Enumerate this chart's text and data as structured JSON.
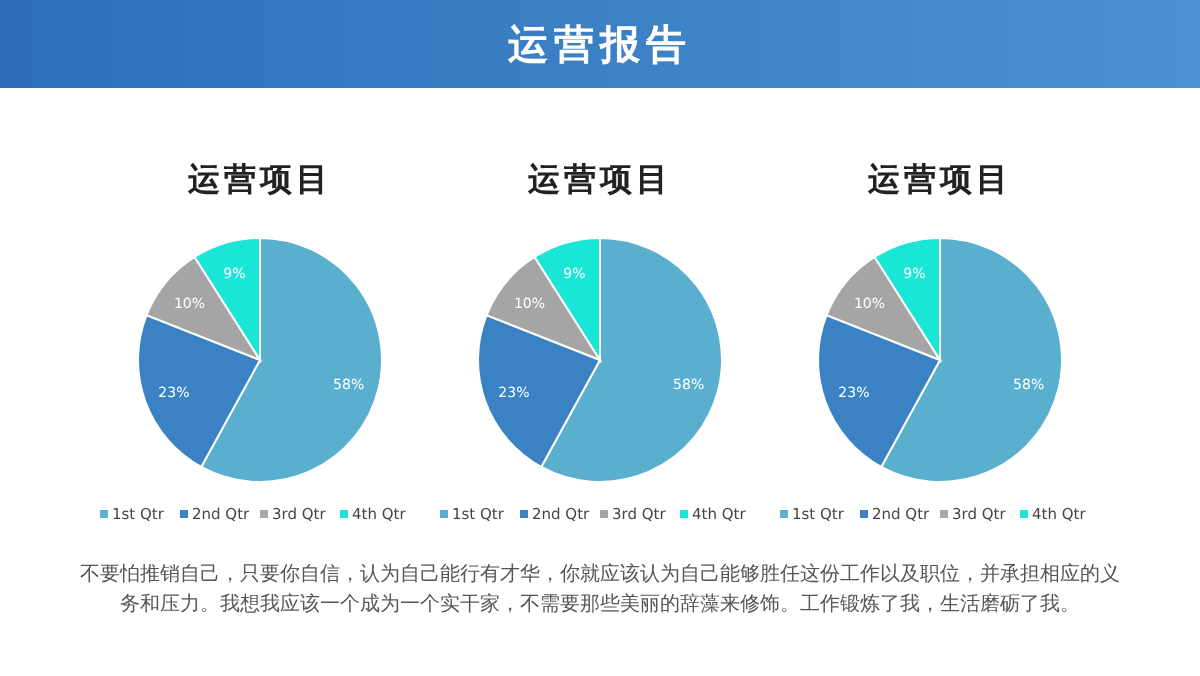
{
  "chart_data": [
    {
      "type": "other",
      "title": "运营报告",
      "annotations": [
        "不要怕推销自己，只要你自信，认为自己能行有才华，你就应该认为自己能够胜任这份工作以及职位，并承担相应的义务和压力。我想我应该一个成为一个实干家，不需要那些美丽的辞藻来修饰。工作锻炼了我，生活磨砺了我。"
      ]
    },
    {
      "type": "pie",
      "title": "运营项目",
      "categories": [
        "1st Qtr",
        "2nd Qtr",
        "3rd Qtr",
        "4th Qtr"
      ],
      "values": [
        58,
        23,
        10,
        9
      ],
      "value_labels": [
        "58%",
        "23%",
        "10%",
        "9%"
      ],
      "colors": [
        "#5aafcf",
        "#3a82c4",
        "#a5a5a5",
        "#19e6d6"
      ],
      "legend": "bottom"
    },
    {
      "type": "pie",
      "title": "运营项目",
      "categories": [
        "1st Qtr",
        "2nd Qtr",
        "3rd Qtr",
        "4th Qtr"
      ],
      "values": [
        58,
        23,
        10,
        9
      ],
      "value_labels": [
        "58%",
        "23%",
        "10%",
        "9%"
      ],
      "colors": [
        "#5aafcf",
        "#3a82c4",
        "#a5a5a5",
        "#19e6d6"
      ],
      "legend": "bottom"
    },
    {
      "type": "pie",
      "title": "运营项目",
      "categories": [
        "1st Qtr",
        "2nd Qtr",
        "3rd Qtr",
        "4th Qtr"
      ],
      "values": [
        58,
        23,
        10,
        9
      ],
      "value_labels": [
        "58%",
        "23%",
        "10%",
        "9%"
      ],
      "colors": [
        "#5aafcf",
        "#3a82c4",
        "#a5a5a5",
        "#19e6d6"
      ],
      "legend": "bottom"
    }
  ]
}
